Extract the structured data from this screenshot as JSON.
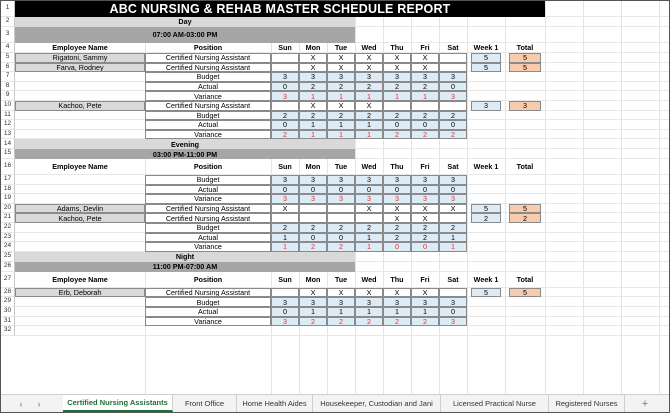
{
  "title": "ABC NURSING & REHAB MASTER SCHEDULE REPORT",
  "colors": {
    "black": "#000000",
    "gray": "#a6a6a6",
    "lightgray": "#d9d9d9",
    "blue": "#ddebf7",
    "orange": "#f8cbad",
    "red": "#e03030",
    "tabgreen": "#1e6e35"
  },
  "header": {
    "employee": "Employee Name",
    "position": "Position",
    "days": [
      "Sun",
      "Mon",
      "Tue",
      "Wed",
      "Thu",
      "Fri",
      "Sat"
    ],
    "week": "Week 1",
    "total": "Total"
  },
  "labels": {
    "budget": "Budget",
    "actual": "Actual",
    "variance": "Variance"
  },
  "day": {
    "label": "Day",
    "time": "07:00 AM-03:00 PM",
    "employees": [
      {
        "name": "Rigatoni, Sammy",
        "position": "Certified Nursing Assistant",
        "days": [
          "",
          "X",
          "X",
          "X",
          "X",
          "X",
          ""
        ],
        "week": "5",
        "total": "5"
      },
      {
        "name": "Farva, Rodney",
        "position": "Certified Nursing Assistant",
        "days": [
          "",
          "X",
          "X",
          "X",
          "X",
          "X",
          ""
        ],
        "week": "5",
        "total": "5"
      }
    ],
    "summary1": {
      "budget": [
        "3",
        "3",
        "3",
        "3",
        "3",
        "3",
        "3"
      ],
      "actual": [
        "0",
        "2",
        "2",
        "2",
        "2",
        "2",
        "0"
      ],
      "variance": [
        "3",
        "1",
        "1",
        "1",
        "1",
        "1",
        "3"
      ]
    },
    "employee3": {
      "name": "Kachoo, Pete",
      "position": "Certified Nursing Assistant",
      "days": [
        "",
        "X",
        "X",
        "X",
        "",
        "",
        ""
      ],
      "week": "3",
      "total": "3"
    },
    "summary2": {
      "budget": [
        "2",
        "2",
        "2",
        "2",
        "2",
        "2",
        "2"
      ],
      "actual": [
        "0",
        "1",
        "1",
        "1",
        "0",
        "0",
        "0"
      ],
      "variance": [
        "2",
        "1",
        "1",
        "1",
        "2",
        "2",
        "2"
      ]
    }
  },
  "evening": {
    "label": "Evening",
    "time": "03:00 PM-11:00 PM",
    "summary": {
      "budget": [
        "3",
        "3",
        "3",
        "3",
        "3",
        "3",
        "3"
      ],
      "actual": [
        "0",
        "0",
        "0",
        "0",
        "0",
        "0",
        "0"
      ],
      "variance": [
        "3",
        "3",
        "3",
        "3",
        "3",
        "3",
        "3"
      ]
    },
    "employees": [
      {
        "name": "Adams, Devlin",
        "position": "Certified Nursing Assistant",
        "days": [
          "X",
          "",
          "",
          "X",
          "X",
          "X",
          "X"
        ],
        "week": "5",
        "total": "5"
      },
      {
        "name": "Kachoo, Pete",
        "position": "Certified Nursing Assistant",
        "days": [
          "",
          "",
          "",
          "",
          "X",
          "X",
          ""
        ],
        "week": "2",
        "total": "2"
      }
    ],
    "summary2": {
      "budget": [
        "2",
        "2",
        "2",
        "2",
        "2",
        "2",
        "2"
      ],
      "actual": [
        "1",
        "0",
        "0",
        "1",
        "2",
        "2",
        "1"
      ],
      "variance": [
        "1",
        "2",
        "2",
        "1",
        "0",
        "0",
        "1"
      ]
    }
  },
  "night": {
    "label": "Night",
    "time": "11:00 PM-07:00 AM",
    "employees": [
      {
        "name": "Erb, Deborah",
        "position": "Certified Nursing Assistant",
        "days": [
          "",
          "X",
          "X",
          "X",
          "X",
          "X",
          ""
        ],
        "week": "5",
        "total": "5"
      }
    ],
    "summary": {
      "budget": [
        "3",
        "3",
        "3",
        "3",
        "3",
        "3",
        "3"
      ],
      "actual": [
        "0",
        "1",
        "1",
        "1",
        "1",
        "1",
        "0"
      ],
      "variance": [
        "3",
        "2",
        "2",
        "2",
        "2",
        "2",
        "3"
      ]
    }
  },
  "tabs": [
    "Certified Nursing Assistants",
    "Front Office",
    "Home Health Aides",
    "Housekeeper, Custodian and Jani",
    "Licensed Practical Nurse",
    "Registered Nurses"
  ],
  "active_tab": 0,
  "add_tab": "+"
}
